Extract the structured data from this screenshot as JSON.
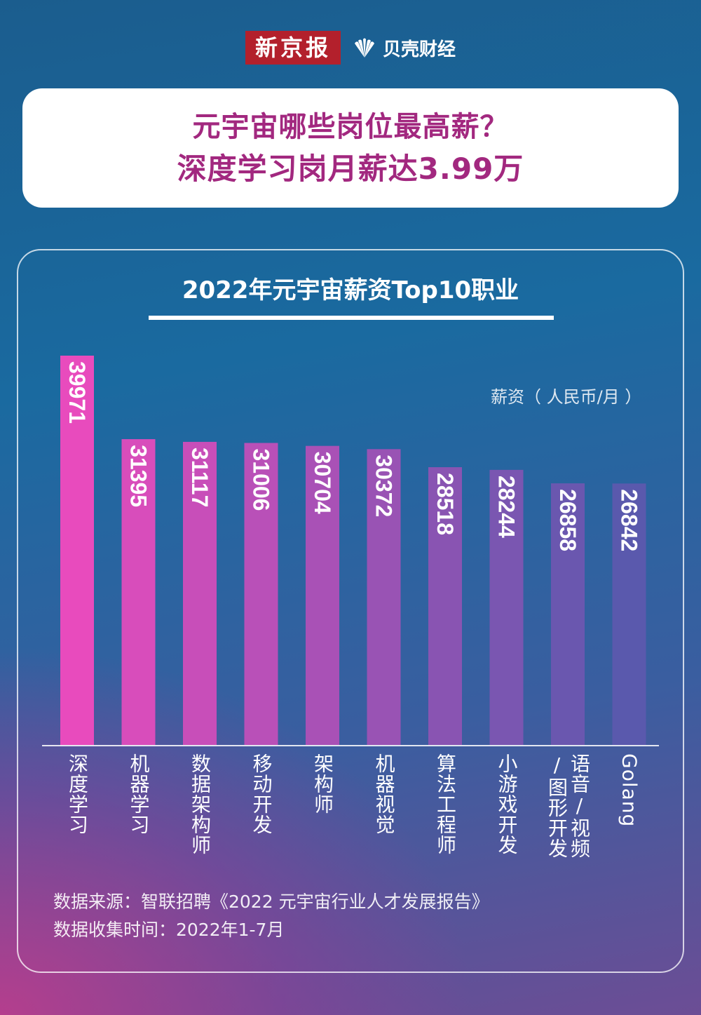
{
  "header": {
    "brand": "新京报",
    "partner": "贝壳财经"
  },
  "headline": {
    "line1": "元宇宙哪些岗位最高薪？",
    "line2": "深度学习岗月薪达3.99万"
  },
  "chart_data": {
    "type": "bar",
    "title": "2022年元宇宙薪资Top10职业",
    "ylabel": "薪资（ 人民币/月 ）",
    "xlabel": "",
    "ylim": [
      0,
      40000
    ],
    "categories": [
      "深度学习",
      "机器学习",
      "数据架构师",
      "移动开发",
      "架构师",
      "机器视觉",
      "算法工程师",
      "小游戏开发",
      "语音/视频/图形开发",
      "Golang"
    ],
    "category_lines": [
      [
        "深度学习"
      ],
      [
        "机器学习"
      ],
      [
        "数据架构师"
      ],
      [
        "移动开发"
      ],
      [
        "架构师"
      ],
      [
        "机器视觉"
      ],
      [
        "算法工程师"
      ],
      [
        "小游戏开发"
      ],
      [
        "语音/视频",
        "/图形开发"
      ],
      [
        "Golang"
      ]
    ],
    "values": [
      39971,
      31395,
      31117,
      31006,
      30704,
      30372,
      28518,
      28244,
      26858,
      26842
    ],
    "colors": {
      "start": "#e84bbd",
      "end": "#5a59ad"
    }
  },
  "source": {
    "line1": "数据来源：智联招聘《2022 元宇宙行业人才发展报告》",
    "line2": "数据收集时间：2022年1-7月"
  }
}
